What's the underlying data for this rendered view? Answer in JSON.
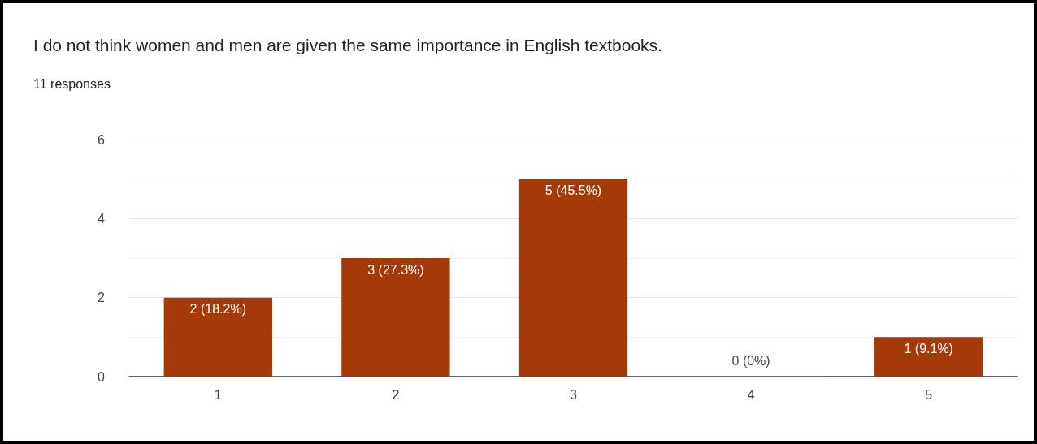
{
  "chart_data": {
    "type": "bar",
    "title": "I do not think women and men are given the same importance in English textbooks.",
    "subtitle": "11 responses",
    "categories": [
      "1",
      "2",
      "3",
      "4",
      "5"
    ],
    "values": [
      2,
      3,
      5,
      0,
      1
    ],
    "value_labels": [
      "2 (18.2%)",
      "3 (27.3%)",
      "5 (45.5%)",
      "0 (0%)",
      "1 (9.1%)"
    ],
    "color": "#a33a08",
    "ylim": [
      0,
      6
    ],
    "yticks": [
      0,
      2,
      4,
      6
    ],
    "grid": true
  }
}
